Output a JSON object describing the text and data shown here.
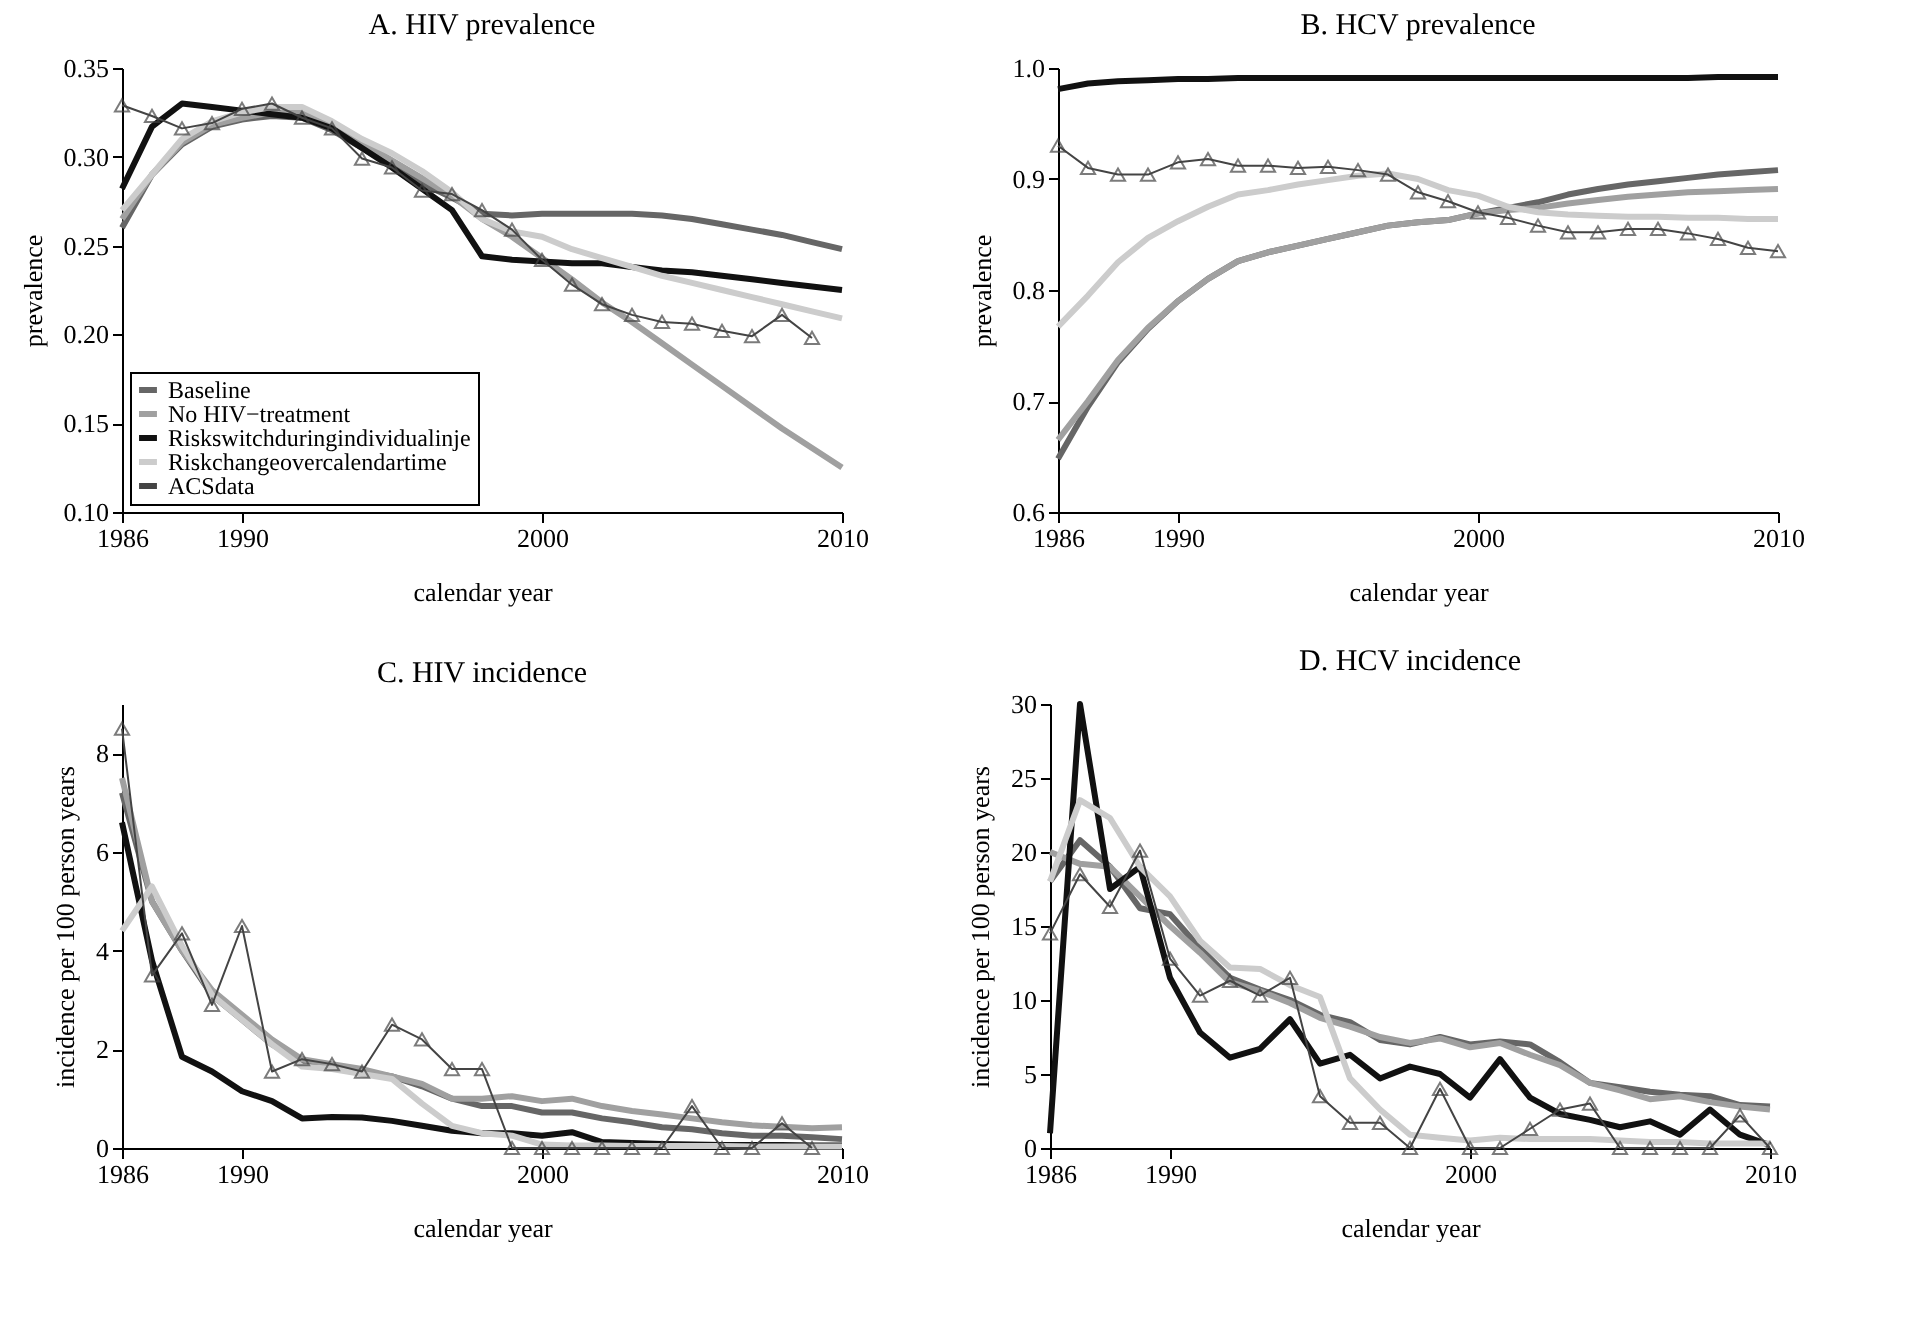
{
  "chart_data": [
    {
      "type": "line",
      "title": "A. HIV prevalence",
      "xlabel": "calendar year",
      "ylabel": "prevalence",
      "x": [
        1986,
        1987,
        1988,
        1989,
        1990,
        1991,
        1992,
        1993,
        1994,
        1995,
        1996,
        1997,
        1998,
        1999,
        2000,
        2001,
        2002,
        2003,
        2004,
        2005,
        2006,
        2007,
        2008,
        2009,
        2010
      ],
      "xlim": [
        1986,
        2010
      ],
      "xticks": [
        1986,
        1990,
        2000,
        2010
      ],
      "ylim": [
        0.1,
        0.35
      ],
      "yticks": [
        {
          "value": 0.1,
          "label": "0.10"
        },
        {
          "value": 0.15,
          "label": "0.15"
        },
        {
          "value": 0.2,
          "label": "0.20"
        },
        {
          "value": 0.25,
          "label": "0.25"
        },
        {
          "value": 0.3,
          "label": "0.30"
        },
        {
          "value": 0.35,
          "label": "0.35"
        }
      ],
      "legend": "bottom left",
      "grid": false,
      "series": [
        {
          "name": "Baseline",
          "color": "#666666",
          "values": [
            0.26,
            0.29,
            0.307,
            0.317,
            0.321,
            0.323,
            0.322,
            0.315,
            0.305,
            0.295,
            0.285,
            0.277,
            0.268,
            0.267,
            0.268,
            0.268,
            0.268,
            0.268,
            0.267,
            0.265,
            0.262,
            0.259,
            0.256,
            0.252,
            0.248
          ]
        },
        {
          "name": "No HIV−treatment",
          "color": "#a0a0a0",
          "values": [
            0.265,
            0.29,
            0.308,
            0.318,
            0.322,
            0.325,
            0.325,
            0.318,
            0.308,
            0.298,
            0.288,
            0.278,
            0.265,
            0.255,
            0.243,
            0.231,
            0.218,
            0.207,
            0.195,
            0.183,
            0.171,
            0.159,
            0.147,
            0.136,
            0.125
          ]
        },
        {
          "name": "Riskswitchduringindividualinje",
          "color": "#111111",
          "values": [
            0.282,
            0.317,
            0.33,
            0.328,
            0.326,
            0.324,
            0.322,
            0.316,
            0.305,
            0.294,
            0.282,
            0.27,
            0.244,
            0.242,
            0.241,
            0.24,
            0.24,
            0.238,
            0.236,
            0.235,
            0.233,
            0.231,
            0.229,
            0.227,
            0.225
          ]
        },
        {
          "name": "Riskchangeovercalendartime",
          "color": "#cccccc",
          "values": [
            0.27,
            0.29,
            0.31,
            0.32,
            0.325,
            0.328,
            0.328,
            0.32,
            0.31,
            0.302,
            0.292,
            0.28,
            0.265,
            0.258,
            0.255,
            0.248,
            0.243,
            0.238,
            0.233,
            0.229,
            0.225,
            0.221,
            0.217,
            0.213,
            0.209
          ]
        },
        {
          "name": "ACSdata",
          "color": "#444444",
          "marker": "triangle",
          "values": [
            0.329,
            0.323,
            0.316,
            0.319,
            0.327,
            0.33,
            0.322,
            0.316,
            0.299,
            0.294,
            0.281,
            0.279,
            0.27,
            0.259,
            0.242,
            0.228,
            0.217,
            0.211,
            0.207,
            0.206,
            0.202,
            0.199,
            0.211,
            0.198,
            null
          ]
        }
      ]
    },
    {
      "type": "line",
      "title": "B. HCV prevalence",
      "xlabel": "calendar year",
      "ylabel": "prevalence",
      "x": [
        1986,
        1987,
        1988,
        1989,
        1990,
        1991,
        1992,
        1993,
        1994,
        1995,
        1996,
        1997,
        1998,
        1999,
        2000,
        2001,
        2002,
        2003,
        2004,
        2005,
        2006,
        2007,
        2008,
        2009,
        2010
      ],
      "xlim": [
        1986,
        2010
      ],
      "xticks": [
        1986,
        1990,
        2000,
        2010
      ],
      "ylim": [
        0.6,
        1.0
      ],
      "yticks": [
        0.6,
        0.7,
        0.8,
        0.9,
        {
          "value": 1.0,
          "label": "1.0"
        }
      ],
      "grid": false,
      "series": [
        {
          "color": "#666666",
          "values": [
            0.648,
            0.695,
            0.735,
            0.765,
            0.79,
            0.81,
            0.826,
            0.834,
            0.84,
            0.846,
            0.852,
            0.858,
            0.861,
            0.863,
            0.869,
            0.874,
            0.879,
            0.886,
            0.891,
            0.895,
            0.898,
            0.901,
            0.904,
            0.906,
            0.908
          ]
        },
        {
          "color": "#a0a0a0",
          "values": [
            0.665,
            0.7,
            0.737,
            0.766,
            0.79,
            0.81,
            0.826,
            0.834,
            0.84,
            0.846,
            0.852,
            0.858,
            0.861,
            0.863,
            0.869,
            0.872,
            0.874,
            0.878,
            0.881,
            0.884,
            0.886,
            0.888,
            0.889,
            0.89,
            0.891
          ]
        },
        {
          "color": "#111111",
          "values": [
            0.981,
            0.986,
            0.988,
            0.989,
            0.99,
            0.99,
            0.991,
            0.991,
            0.991,
            0.991,
            0.991,
            0.991,
            0.991,
            0.991,
            0.991,
            0.991,
            0.991,
            0.991,
            0.991,
            0.991,
            0.991,
            0.991,
            0.992,
            0.992,
            0.992
          ]
        },
        {
          "color": "#cccccc",
          "values": [
            0.767,
            0.795,
            0.825,
            0.847,
            0.862,
            0.875,
            0.886,
            0.89,
            0.895,
            0.899,
            0.903,
            0.905,
            0.9,
            0.89,
            0.885,
            0.875,
            0.87,
            0.868,
            0.867,
            0.866,
            0.866,
            0.865,
            0.865,
            0.864,
            0.864
          ]
        },
        {
          "color": "#444444",
          "marker": "triangle",
          "values": [
            0.93,
            0.91,
            0.904,
            0.904,
            0.915,
            0.918,
            0.912,
            0.912,
            0.91,
            0.911,
            0.908,
            0.904,
            0.888,
            0.88,
            0.87,
            0.865,
            0.858,
            0.852,
            0.852,
            0.855,
            0.855,
            0.851,
            0.846,
            0.838,
            0.835
          ]
        }
      ]
    },
    {
      "type": "line",
      "title": "C. HIV incidence",
      "xlabel": "calendar year",
      "ylabel": "incidence per 100 person years",
      "x": [
        1986,
        1987,
        1988,
        1989,
        1990,
        1991,
        1992,
        1993,
        1994,
        1995,
        1996,
        1997,
        1998,
        1999,
        2000,
        2001,
        2002,
        2003,
        2004,
        2005,
        2006,
        2007,
        2008,
        2009,
        2010
      ],
      "xlim": [
        1986,
        2010
      ],
      "xticks": [
        1986,
        1990,
        2000,
        2010
      ],
      "ylim": [
        0,
        9
      ],
      "yticks": [
        0,
        2,
        4,
        6,
        8
      ],
      "grid": false,
      "series": [
        {
          "color": "#666666",
          "values": [
            7.2,
            5.0,
            4.0,
            3.1,
            2.6,
            2.1,
            1.75,
            1.65,
            1.55,
            1.45,
            1.25,
            1.0,
            0.85,
            0.85,
            0.72,
            0.72,
            0.6,
            0.52,
            0.42,
            0.38,
            0.3,
            0.25,
            0.25,
            0.22,
            0.18
          ]
        },
        {
          "color": "#a0a0a0",
          "values": [
            7.5,
            5.0,
            4.0,
            3.2,
            2.7,
            2.2,
            1.8,
            1.7,
            1.6,
            1.45,
            1.3,
            1.0,
            1.0,
            1.05,
            0.95,
            1.0,
            0.85,
            0.75,
            0.68,
            0.6,
            0.52,
            0.46,
            0.43,
            0.4,
            0.42
          ]
        },
        {
          "color": "#111111",
          "values": [
            6.6,
            3.8,
            1.85,
            1.55,
            1.15,
            0.95,
            0.6,
            0.63,
            0.62,
            0.55,
            0.45,
            0.35,
            0.3,
            0.3,
            0.25,
            0.32,
            0.12,
            0.1,
            0.08,
            0.07,
            0.06,
            0.06,
            0.06,
            0.05,
            0.05
          ]
        },
        {
          "color": "#cccccc",
          "values": [
            4.4,
            5.3,
            4.1,
            3.1,
            2.6,
            2.1,
            1.65,
            1.6,
            1.5,
            1.4,
            0.9,
            0.45,
            0.3,
            0.25,
            0.07,
            0.05,
            0.05,
            0.04,
            0.04,
            0.04,
            0.04,
            0.03,
            0.03,
            0.03,
            0.03
          ]
        },
        {
          "color": "#444444",
          "marker": "triangle",
          "values": [
            8.5,
            3.5,
            4.35,
            2.9,
            4.5,
            1.55,
            1.8,
            1.7,
            1.55,
            2.5,
            2.2,
            1.6,
            1.6,
            0,
            0,
            0,
            0,
            0,
            0,
            0.85,
            0,
            0,
            0.5,
            0,
            null
          ]
        }
      ]
    },
    {
      "type": "line",
      "title": "D. HCV incidence",
      "xlabel": "calendar year",
      "ylabel": "incidence per 100 person years",
      "x": [
        1986,
        1987,
        1988,
        1989,
        1990,
        1991,
        1992,
        1993,
        1994,
        1995,
        1996,
        1997,
        1998,
        1999,
        2000,
        2001,
        2002,
        2003,
        2004,
        2005,
        2006,
        2007,
        2008,
        2009,
        2010
      ],
      "xlim": [
        1986,
        2010
      ],
      "xticks": [
        1986,
        1990,
        2000,
        2010
      ],
      "ylim": [
        0,
        30
      ],
      "yticks": [
        0,
        5,
        10,
        15,
        20,
        25,
        30
      ],
      "grid": false,
      "series": [
        {
          "color": "#666666",
          "values": [
            18,
            20.8,
            19,
            16.2,
            15.8,
            13.5,
            11.5,
            10.7,
            10,
            9,
            8.5,
            7.3,
            7,
            7.5,
            7,
            7.2,
            7,
            5.8,
            4.4,
            4.1,
            3.8,
            3.6,
            3.5,
            2.9,
            2.8
          ]
        },
        {
          "color": "#a0a0a0",
          "values": [
            20,
            19.2,
            19,
            17,
            15,
            13.2,
            11.2,
            10.6,
            9.8,
            8.8,
            8.2,
            7.5,
            7.1,
            7.4,
            6.8,
            7.1,
            6.3,
            5.6,
            4.4,
            3.9,
            3.3,
            3.5,
            3.1,
            2.8,
            2.6
          ]
        },
        {
          "color": "#111111",
          "values": [
            1,
            30,
            17.5,
            19,
            11.5,
            7.8,
            6.1,
            6.7,
            8.7,
            5.7,
            6.3,
            4.7,
            5.5,
            5,
            3.4,
            6,
            3.4,
            2.3,
            1.9,
            1.4,
            1.8,
            0.9,
            2.6,
            0.9,
            0.2
          ]
        },
        {
          "color": "#cccccc",
          "values": [
            18,
            23.5,
            22.3,
            19,
            17,
            14,
            12.2,
            12.1,
            11,
            10.2,
            4.7,
            2.6,
            0.9,
            0.7,
            0.5,
            0.7,
            0.6,
            0.6,
            0.6,
            0.5,
            0.4,
            0.4,
            0.3,
            0.3,
            0.3
          ]
        },
        {
          "color": "#444444",
          "marker": "triangle",
          "values": [
            14.5,
            18.5,
            16.3,
            20.1,
            12.8,
            10.3,
            11.3,
            10.3,
            11.5,
            3.5,
            1.7,
            1.7,
            0,
            4,
            0,
            0,
            1.3,
            2.6,
            3,
            0,
            0,
            0,
            0,
            2.2,
            0
          ]
        }
      ]
    }
  ]
}
